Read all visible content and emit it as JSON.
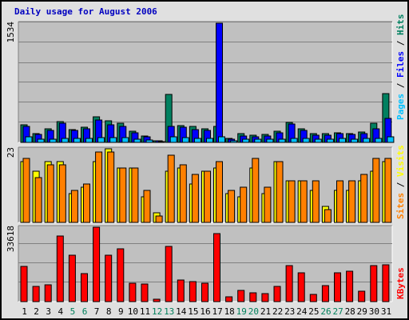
{
  "chart_data": {
    "title": "Daily usage for August 2006",
    "x": [
      "1",
      "2",
      "3",
      "4",
      "5",
      "6",
      "7",
      "8",
      "9",
      "10",
      "11",
      "12",
      "13",
      "14",
      "15",
      "16",
      "17",
      "18",
      "19",
      "20",
      "21",
      "22",
      "23",
      "24",
      "25",
      "26",
      "27",
      "28",
      "29",
      "30",
      "31"
    ],
    "weekend_days": [
      "5",
      "6",
      "12",
      "13",
      "19",
      "20",
      "26",
      "27"
    ],
    "panels": [
      {
        "type": "bar",
        "max_label": "1534",
        "ylim": [
          0,
          1534
        ],
        "axis_label": [
          {
            "text": "Pages",
            "color": "#00c0ff"
          },
          {
            "text": " / ",
            "color": "#000000"
          },
          {
            "text": "Files",
            "color": "#0000ff"
          },
          {
            "text": " / ",
            "color": "#000000"
          },
          {
            "text": "Hits",
            "color": "#008060"
          }
        ],
        "series": [
          {
            "name": "Hits",
            "color": "#008060",
            "values": [
              230,
              115,
              170,
              265,
              165,
              195,
              330,
              280,
              250,
              140,
              80,
              25,
              620,
              220,
              210,
              170,
              210,
              55,
              110,
              95,
              100,
              145,
              255,
              180,
              115,
              110,
              125,
              110,
              135,
              245,
              625
            ]
          },
          {
            "name": "Files",
            "color": "#0000ff",
            "values": [
              210,
              105,
              155,
              250,
              155,
              175,
              285,
              230,
              210,
              125,
              75,
              20,
              205,
              200,
              165,
              150,
              1534,
              45,
              85,
              75,
              85,
              125,
              240,
              150,
              95,
              95,
              115,
              105,
              115,
              175,
              305
            ]
          },
          {
            "name": "Pages",
            "color": "#00c0ff",
            "values": [
              70,
              45,
              45,
              55,
              50,
              50,
              60,
              65,
              60,
              45,
              30,
              10,
              70,
              60,
              50,
              50,
              70,
              20,
              45,
              40,
              40,
              45,
              55,
              50,
              45,
              45,
              50,
              45,
              50,
              50,
              70
            ]
          }
        ]
      },
      {
        "type": "bar",
        "max_label": "23",
        "ylim": [
          0,
          23
        ],
        "axis_label": [
          {
            "text": "Sites",
            "color": "#ff8000"
          },
          {
            "text": " / ",
            "color": "#000000"
          },
          {
            "text": "Visits",
            "color": "#ffff00"
          }
        ],
        "series": [
          {
            "name": "Visits",
            "color": "#ffff00",
            "values": [
              19,
              16,
              19,
              19,
              9,
              11,
              19,
              23,
              17,
              17,
              8,
              3,
              16,
              17,
              12,
              16,
              17,
              9,
              8,
              17,
              9,
              19,
              13,
              13,
              10,
              5,
              10,
              10,
              13,
              16,
              19
            ]
          },
          {
            "name": "Sites",
            "color": "#ff8000",
            "values": [
              20,
              14,
              18,
              18,
              10,
              12,
              22,
              22,
              17,
              17,
              10,
              2,
              21,
              18,
              15,
              16,
              19,
              10,
              11,
              20,
              11,
              19,
              13,
              13,
              13,
              4,
              13,
              13,
              15,
              20,
              20
            ]
          }
        ]
      },
      {
        "type": "bar",
        "max_label": "33618",
        "ylim": [
          0,
          33618
        ],
        "axis_label": [
          {
            "text": "KBytes",
            "color": "#ff0000"
          }
        ],
        "series": [
          {
            "name": "KBytes",
            "color": "#ff0000",
            "values": [
              15800,
              6800,
              7700,
              29500,
              21000,
              12700,
              33618,
              20800,
              23700,
              8200,
              8000,
              1200,
              25100,
              9600,
              9200,
              8300,
              30800,
              2000,
              5200,
              3800,
              3700,
              6900,
              16300,
              13100,
              3200,
              7200,
              13100,
              13600,
              4600,
              16300,
              16500
            ]
          }
        ]
      }
    ]
  }
}
